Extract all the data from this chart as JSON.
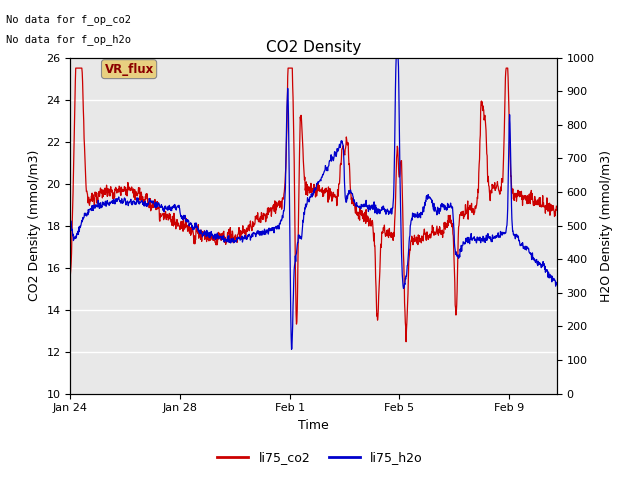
{
  "title": "CO2 Density",
  "xlabel": "Time",
  "ylabel_left": "CO2 Density (mmol/m3)",
  "ylabel_right": "H2O Density (mmol/m3)",
  "ylim_left": [
    10,
    26
  ],
  "ylim_right": [
    0,
    1000
  ],
  "yticks_left": [
    10,
    12,
    14,
    16,
    18,
    20,
    22,
    24,
    26
  ],
  "yticks_right": [
    0,
    100,
    200,
    300,
    400,
    500,
    600,
    700,
    800,
    900,
    1000
  ],
  "no_data_text1": "No data for f_op_co2",
  "no_data_text2": "No data for f_op_h2o",
  "vr_flux_label": "VR_flux",
  "legend_co2": "li75_co2",
  "legend_h2o": "li75_h2o",
  "color_co2": "#cc0000",
  "color_h2o": "#0000cc",
  "background_color": "#e8e8e8",
  "fig_background": "#ffffff",
  "title_fontsize": 11,
  "axis_fontsize": 9,
  "tick_fontsize": 8,
  "legend_fontsize": 9,
  "linewidth": 0.9
}
